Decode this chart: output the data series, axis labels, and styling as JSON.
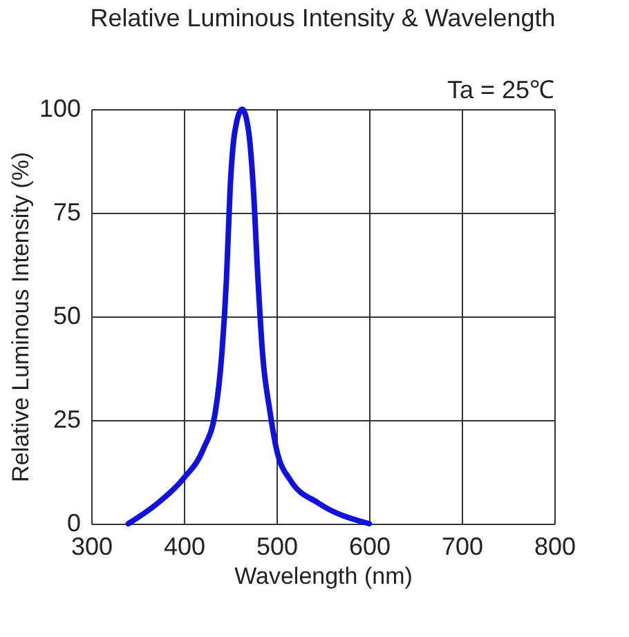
{
  "chart_data": {
    "type": "line",
    "title": "Relative Luminous Intensity & Wavelength",
    "xlabel": "Wavelength (nm)",
    "ylabel": "Relative Luminous Intensity (%)",
    "annotations": [
      "Ta = 25℃"
    ],
    "x": [
      340,
      372,
      400,
      421,
      434,
      441,
      446,
      450,
      455,
      463,
      470,
      475,
      480,
      485,
      493,
      500,
      515,
      545,
      600
    ],
    "series": [
      {
        "color": "#1010e0",
        "values": [
          0,
          5,
          11,
          18,
          27,
          41,
          59,
          81,
          94.5,
          100,
          94.5,
          81,
          59,
          41,
          27,
          18,
          10.5,
          5,
          0
        ]
      }
    ],
    "xlim": [
      300,
      800
    ],
    "xticks": [
      300,
      400,
      500,
      600,
      700,
      800
    ],
    "ylim": [
      0,
      100
    ],
    "yticks": [
      0,
      25,
      50,
      75,
      100
    ],
    "grid": true,
    "marker": "none",
    "line_style": "solid"
  }
}
